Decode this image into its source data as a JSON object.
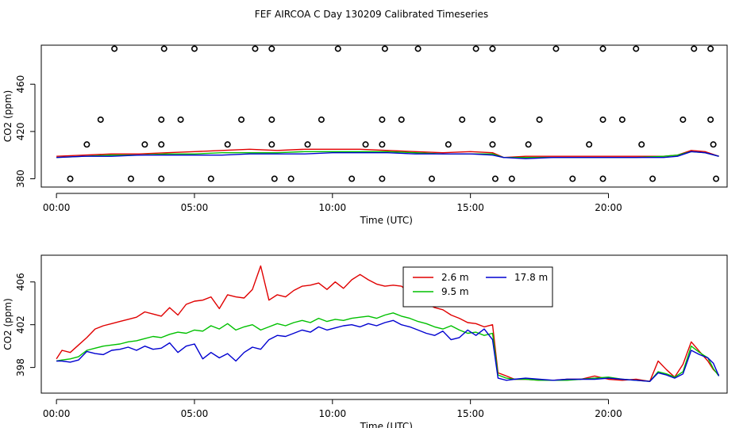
{
  "title": "FEF AIRCOA C  Day 130209  Calibrated Timeseries",
  "colors": {
    "red": "#e00000",
    "green": "#00c000",
    "blue": "#0000d0",
    "black": "#000000"
  },
  "chart_data": [
    {
      "type": "line",
      "name": "top-panel",
      "xlabel": "Time (UTC)",
      "ylabel": "CO2 (ppm)",
      "xlim": [
        -0.55,
        24.3
      ],
      "ylim": [
        373,
        493
      ],
      "xticks": [
        0,
        5,
        10,
        15,
        20
      ],
      "xtick_labels": [
        "00:00",
        "05:00",
        "10:00",
        "15:00",
        "20:00"
      ],
      "yticks": [
        380,
        420,
        460
      ],
      "ytick_labels": [
        "380",
        "420",
        "460"
      ],
      "series": [
        {
          "name": "2.6 m",
          "color": "#e00000",
          "x": [
            0,
            1,
            2,
            3,
            4,
            5,
            6,
            7,
            8,
            9,
            10,
            11,
            12,
            13,
            14,
            15,
            15.8,
            16.2,
            17,
            18,
            19,
            20,
            21,
            22,
            22.5,
            23,
            23.5,
            24
          ],
          "y": [
            399,
            400,
            401,
            401,
            402,
            403,
            404,
            405,
            404,
            405,
            405,
            405,
            404,
            403,
            402,
            403,
            402,
            398,
            399,
            399,
            399,
            399,
            399,
            399,
            400,
            404,
            403,
            399
          ]
        },
        {
          "name": "9.5 m",
          "color": "#00c000",
          "x": [
            0,
            1,
            2,
            3,
            4,
            5,
            6,
            7,
            8,
            9,
            10,
            11,
            12,
            13,
            14,
            15,
            15.8,
            16.2,
            17,
            18,
            19,
            20,
            21,
            22,
            22.5,
            23,
            23.5,
            24
          ],
          "y": [
            398,
            399,
            400,
            400,
            401,
            401,
            402,
            402,
            402,
            403,
            403,
            403,
            403,
            402,
            401,
            401,
            401,
            398,
            398,
            398,
            398,
            398,
            398,
            399,
            400,
            403,
            402,
            399
          ]
        },
        {
          "name": "17.8 m",
          "color": "#0000d0",
          "x": [
            0,
            1,
            2,
            3,
            4,
            5,
            6,
            7,
            8,
            9,
            10,
            11,
            12,
            13,
            14,
            15,
            15.8,
            16.2,
            17,
            18,
            19,
            20,
            21,
            22,
            22.5,
            23,
            23.5,
            24
          ],
          "y": [
            398,
            399,
            399,
            400,
            400,
            400,
            400,
            401,
            401,
            401,
            402,
            402,
            402,
            401,
            401,
            401,
            400,
            398,
            397,
            398,
            398,
            398,
            398,
            398,
            399,
            403,
            402,
            399
          ]
        },
        {
          "name": "calibration",
          "color": "#000000",
          "marker": "circle",
          "x": [
            1.1,
            3.2,
            3.8,
            6.2,
            7.8,
            9.1,
            11.2,
            11.8,
            14.2,
            15.8,
            17.1,
            19.3,
            21.2,
            23.8,
            1.6,
            3.8,
            4.5,
            6.7,
            7.8,
            9.6,
            11.8,
            12.5,
            14.7,
            15.8,
            17.5,
            19.8,
            20.5,
            22.7,
            23.7,
            2.1,
            3.9,
            5.0,
            7.2,
            7.8,
            10.2,
            11.9,
            13.1,
            15.2,
            15.8,
            18.1,
            19.8,
            21.0,
            23.1,
            23.7,
            0.5,
            2.7,
            3.8,
            5.6,
            7.9,
            8.5,
            10.7,
            11.8,
            13.6,
            15.9,
            16.5,
            18.7,
            19.8,
            21.6,
            23.9
          ],
          "y": [
            409,
            409,
            409,
            409,
            409,
            409,
            409,
            409,
            409,
            409,
            409,
            409,
            409,
            409,
            430,
            430,
            430,
            430,
            430,
            430,
            430,
            430,
            430,
            430,
            430,
            430,
            430,
            430,
            430,
            490,
            490,
            490,
            490,
            490,
            490,
            490,
            490,
            490,
            490,
            490,
            490,
            490,
            490,
            490,
            380,
            380,
            380,
            380,
            380,
            380,
            380,
            380,
            380,
            380,
            380,
            380,
            380,
            380,
            380
          ]
        }
      ]
    },
    {
      "type": "line",
      "name": "bottom-panel",
      "xlabel": "Time (UTC)",
      "ylabel": "CO2 (ppm)",
      "xlim": [
        -0.55,
        24.3
      ],
      "ylim": [
        395.6,
        408.5
      ],
      "xticks": [
        0,
        5,
        10,
        15,
        20
      ],
      "xtick_labels": [
        "00:00",
        "05:00",
        "10:00",
        "15:00",
        "20:00"
      ],
      "yticks": [
        398,
        402,
        406
      ],
      "ytick_labels": [
        "398",
        "402",
        "406"
      ],
      "legend": {
        "position": "top-center",
        "entries": [
          "2.6 m",
          "17.8 m",
          "9.5 m"
        ]
      },
      "series": [
        {
          "name": "2.6 m",
          "color": "#e00000",
          "x": [
            0,
            0.2,
            0.5,
            0.8,
            1.1,
            1.4,
            1.7,
            2.0,
            2.3,
            2.6,
            2.9,
            3.2,
            3.5,
            3.8,
            4.1,
            4.4,
            4.7,
            5.0,
            5.3,
            5.6,
            5.9,
            6.2,
            6.5,
            6.8,
            7.1,
            7.4,
            7.7,
            8.0,
            8.3,
            8.6,
            8.9,
            9.2,
            9.5,
            9.8,
            10.1,
            10.4,
            10.7,
            11.0,
            11.3,
            11.6,
            11.9,
            12.2,
            12.5,
            12.8,
            13.1,
            13.4,
            13.7,
            14.0,
            14.3,
            14.6,
            14.9,
            15.2,
            15.5,
            15.8,
            16.0,
            16.3,
            16.6,
            17.0,
            17.5,
            18.0,
            18.5,
            19.0,
            19.5,
            20.0,
            20.5,
            21.0,
            21.5,
            21.8,
            22.1,
            22.4,
            22.7,
            23.0,
            23.3,
            23.6,
            23.8,
            24.0
          ],
          "y": [
            398.8,
            399.6,
            399.4,
            400.1,
            400.8,
            401.6,
            401.9,
            402.1,
            402.3,
            402.5,
            402.7,
            403.2,
            403.0,
            402.8,
            403.6,
            402.9,
            403.9,
            404.2,
            404.3,
            404.6,
            403.5,
            404.8,
            404.6,
            404.5,
            405.3,
            407.5,
            404.3,
            404.8,
            404.6,
            405.2,
            405.6,
            405.7,
            405.9,
            405.3,
            406.0,
            405.4,
            406.2,
            406.7,
            406.2,
            405.8,
            405.6,
            405.7,
            405.6,
            405.0,
            404.3,
            404.0,
            403.6,
            403.4,
            402.9,
            402.6,
            402.2,
            402.1,
            401.8,
            402.0,
            397.5,
            397.2,
            396.9,
            396.9,
            396.8,
            396.8,
            396.9,
            396.9,
            397.2,
            396.9,
            396.8,
            396.9,
            396.7,
            398.6,
            397.8,
            397.1,
            398.3,
            400.4,
            399.5,
            398.6,
            397.8,
            397.3
          ]
        },
        {
          "name": "9.5 m",
          "color": "#00c000",
          "x": [
            0,
            0.2,
            0.5,
            0.8,
            1.1,
            1.4,
            1.7,
            2.0,
            2.3,
            2.6,
            2.9,
            3.2,
            3.5,
            3.8,
            4.1,
            4.4,
            4.7,
            5.0,
            5.3,
            5.6,
            5.9,
            6.2,
            6.5,
            6.8,
            7.1,
            7.4,
            7.7,
            8.0,
            8.3,
            8.6,
            8.9,
            9.2,
            9.5,
            9.8,
            10.1,
            10.4,
            10.7,
            11.0,
            11.3,
            11.6,
            11.9,
            12.2,
            12.5,
            12.8,
            13.1,
            13.4,
            13.7,
            14.0,
            14.3,
            14.6,
            14.9,
            15.2,
            15.5,
            15.8,
            16.0,
            16.3,
            16.6,
            17.0,
            17.5,
            18.0,
            18.5,
            19.0,
            19.5,
            20.0,
            20.5,
            21.0,
            21.5,
            21.8,
            22.1,
            22.4,
            22.7,
            23.0,
            23.3,
            23.6,
            23.8,
            24.0
          ],
          "y": [
            398.6,
            398.7,
            398.8,
            399.0,
            399.6,
            399.8,
            400.0,
            400.1,
            400.2,
            400.4,
            400.5,
            400.7,
            400.9,
            400.8,
            401.1,
            401.3,
            401.2,
            401.5,
            401.4,
            401.9,
            401.6,
            402.1,
            401.5,
            401.8,
            402.0,
            401.5,
            401.8,
            402.1,
            401.9,
            402.2,
            402.4,
            402.2,
            402.6,
            402.3,
            402.5,
            402.4,
            402.6,
            402.7,
            402.8,
            402.6,
            402.9,
            403.1,
            402.8,
            402.6,
            402.3,
            402.1,
            401.8,
            401.6,
            401.9,
            401.5,
            401.2,
            401.3,
            401.0,
            401.2,
            397.3,
            397.0,
            396.9,
            396.9,
            396.8,
            396.8,
            396.8,
            396.9,
            397.0,
            397.1,
            396.9,
            396.8,
            396.7,
            397.6,
            397.4,
            397.1,
            397.6,
            400.0,
            399.4,
            398.9,
            397.9,
            397.2
          ]
        },
        {
          "name": "17.8 m",
          "color": "#0000d0",
          "x": [
            0,
            0.2,
            0.5,
            0.8,
            1.1,
            1.4,
            1.7,
            2.0,
            2.3,
            2.6,
            2.9,
            3.2,
            3.5,
            3.8,
            4.1,
            4.4,
            4.7,
            5.0,
            5.3,
            5.6,
            5.9,
            6.2,
            6.5,
            6.8,
            7.1,
            7.4,
            7.7,
            8.0,
            8.3,
            8.6,
            8.9,
            9.2,
            9.5,
            9.8,
            10.1,
            10.4,
            10.7,
            11.0,
            11.3,
            11.6,
            11.9,
            12.2,
            12.5,
            12.8,
            13.1,
            13.4,
            13.7,
            14.0,
            14.3,
            14.6,
            14.9,
            15.2,
            15.5,
            15.8,
            16.0,
            16.3,
            16.6,
            17.0,
            17.5,
            18.0,
            18.5,
            19.0,
            19.5,
            20.0,
            20.5,
            21.0,
            21.5,
            21.8,
            22.1,
            22.4,
            22.7,
            23.0,
            23.3,
            23.6,
            23.8,
            24.0
          ],
          "y": [
            398.6,
            398.6,
            398.5,
            398.7,
            399.5,
            399.3,
            399.2,
            399.6,
            399.7,
            399.9,
            399.6,
            400.0,
            399.7,
            399.8,
            400.3,
            399.4,
            400.0,
            400.2,
            398.8,
            399.4,
            398.9,
            399.3,
            398.6,
            399.4,
            399.9,
            399.7,
            400.6,
            401.0,
            400.9,
            401.2,
            401.5,
            401.3,
            401.8,
            401.5,
            401.7,
            401.9,
            402.0,
            401.8,
            402.1,
            401.9,
            402.2,
            402.4,
            402.0,
            401.8,
            401.5,
            401.2,
            401.0,
            401.4,
            400.6,
            400.8,
            401.5,
            401.0,
            401.6,
            400.6,
            397.0,
            396.8,
            396.9,
            397.0,
            396.9,
            396.8,
            396.9,
            396.9,
            396.9,
            397.0,
            396.9,
            396.8,
            396.7,
            397.5,
            397.3,
            397.0,
            397.4,
            399.6,
            399.2,
            398.9,
            398.4,
            397.2
          ]
        }
      ]
    }
  ]
}
